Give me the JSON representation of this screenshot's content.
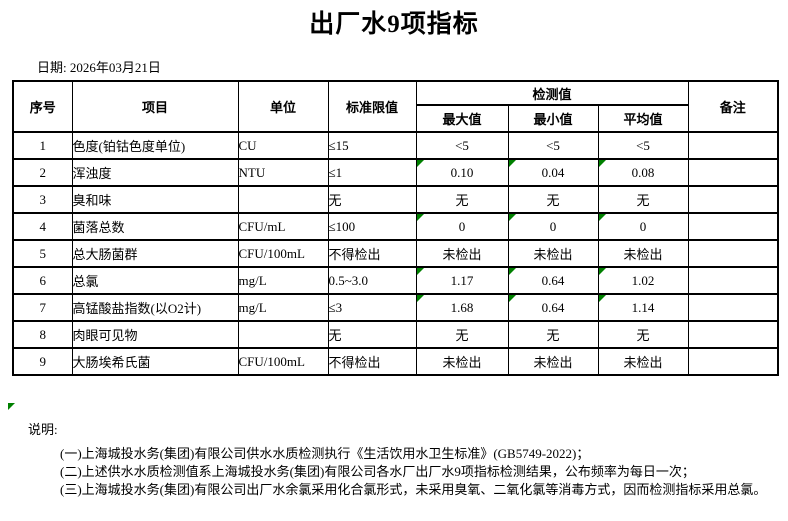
{
  "page": {
    "title": "出厂水9项指标",
    "date": "日期: 2026年03月21日"
  },
  "colors": {
    "marker_green": "#008000",
    "border": "#000000",
    "text": "#000000",
    "background": "#ffffff"
  },
  "table": {
    "headers": {
      "index": "序号",
      "item": "项目",
      "unit": "单位",
      "limit": "标准限值",
      "detection": "检测值",
      "max": "最大值",
      "min": "最小值",
      "avg": "平均值",
      "remark": "备注"
    },
    "rows": [
      {
        "index": "1",
        "item": "色度(铂钴色度单位)",
        "unit": "CU",
        "limit": "≤15",
        "max": "<5",
        "min": "<5",
        "avg": "<5",
        "remark": "",
        "marker": false
      },
      {
        "index": "2",
        "item": "浑浊度",
        "unit": "NTU",
        "limit": "≤1",
        "max": "0.10",
        "min": "0.04",
        "avg": "0.08",
        "remark": "",
        "marker": true
      },
      {
        "index": "3",
        "item": "臭和味",
        "unit": "",
        "limit": "无",
        "max": "无",
        "min": "无",
        "avg": "无",
        "remark": "",
        "marker": false
      },
      {
        "index": "4",
        "item": "菌落总数",
        "unit": "CFU/mL",
        "limit": "≤100",
        "max": "0",
        "min": "0",
        "avg": "0",
        "remark": "",
        "marker": true
      },
      {
        "index": "5",
        "item": "总大肠菌群",
        "unit": "CFU/100mL",
        "limit": "不得检出",
        "max": "未检出",
        "min": "未检出",
        "avg": "未检出",
        "remark": "",
        "marker": false
      },
      {
        "index": "6",
        "item": "总氯",
        "unit": "mg/L",
        "limit": "0.5~3.0",
        "max": "1.17",
        "min": "0.64",
        "avg": "1.02",
        "remark": "",
        "marker": true
      },
      {
        "index": "7",
        "item": "高锰酸盐指数(以O2计)",
        "unit": "mg/L",
        "limit": "≤3",
        "max": "1.68",
        "min": "0.64",
        "avg": "1.14",
        "remark": "",
        "marker": true
      },
      {
        "index": "8",
        "item": "肉眼可见物",
        "unit": "",
        "limit": "无",
        "max": "无",
        "min": "无",
        "avg": "无",
        "remark": "",
        "marker": false
      },
      {
        "index": "9",
        "item": "大肠埃希氏菌",
        "unit": "CFU/100mL",
        "limit": "不得检出",
        "max": "未检出",
        "min": "未检出",
        "avg": "未检出",
        "remark": "",
        "marker": false
      }
    ]
  },
  "notes": {
    "label": "说明:",
    "items": [
      "(一)上海城投水务(集团)有限公司供水水质检测执行《生活饮用水卫生标准》(GB5749-2022)；",
      "(二)上述供水水质检测值系上海城投水务(集团)有限公司各水厂出厂水9项指标检测结果，公布频率为每日一次；",
      "(三)上海城投水务(集团)有限公司出厂水余氯采用化合氯形式，未采用臭氧、二氧化氯等消毒方式，因而检测指标采用总氯。"
    ]
  }
}
